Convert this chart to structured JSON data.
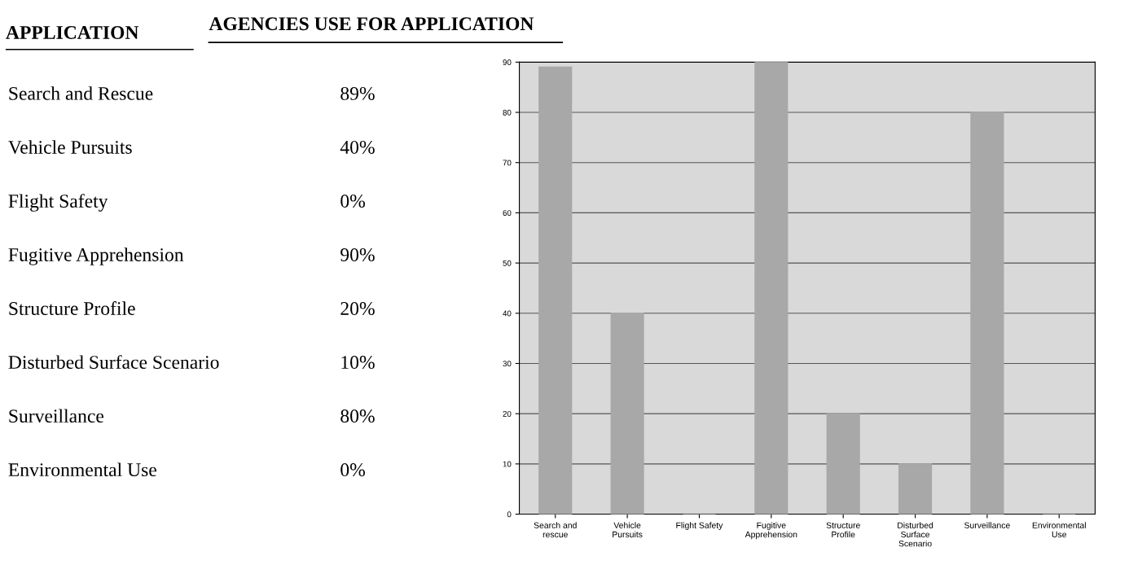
{
  "chart_data": [
    {
      "type": "other",
      "title": "APPLICATION",
      "annotations": [
        "Search and Rescue",
        "89%",
        "Vehicle Pursuits",
        "40%",
        "Flight Safety",
        "0%",
        "Fugitive Apprehension",
        "90%",
        "Structure Profile",
        "20%",
        "Disturbed Surface Scenario",
        "10%",
        "Surveillance",
        "80%",
        "Environmental Use",
        "0%"
      ]
    },
    {
      "type": "bar",
      "title": "AGENCIES USE FOR APPLICATION",
      "categories": [
        "Search and\nrescue",
        "Vehicle\nPursuits",
        "Flight Safety",
        "Fugitive\nApprehension",
        "Structure\nProfile",
        "Disturbed\nSurface\nScenario",
        "Surveillance",
        "Environmental\nUse"
      ],
      "values": [
        89,
        40,
        0,
        90,
        20,
        10,
        80,
        0
      ],
      "color": "#a8a8a8",
      "ylim": [
        0,
        90
      ],
      "yticks": [
        0,
        10,
        20,
        30,
        40,
        50,
        60,
        70,
        80,
        90
      ],
      "grid": "y"
    }
  ]
}
